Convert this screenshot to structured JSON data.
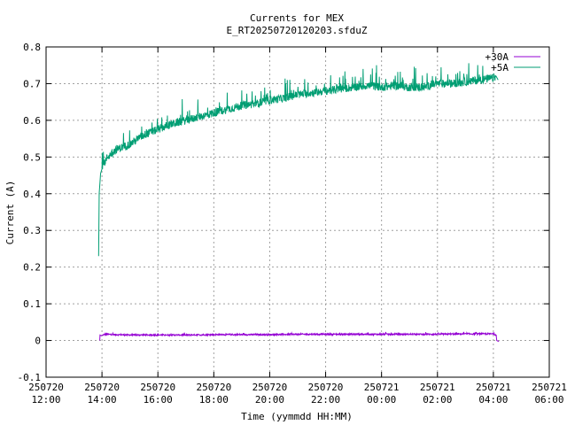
{
  "chart_data": {
    "type": "line",
    "title": "Currents for MEX",
    "subtitle": "E_RT20250720120203.sfduZ",
    "xlabel": "Time (yymmdd HH:MM)",
    "ylabel": "Current (A)",
    "xlim_hours": [
      12,
      30
    ],
    "ylim": [
      -0.1,
      0.8
    ],
    "grid": true,
    "legend_placement": "top-right",
    "x_ticks": [
      {
        "hour": 12,
        "date": "250720",
        "time": "12:00"
      },
      {
        "hour": 14,
        "date": "250720",
        "time": "14:00"
      },
      {
        "hour": 16,
        "date": "250720",
        "time": "16:00"
      },
      {
        "hour": 18,
        "date": "250720",
        "time": "18:00"
      },
      {
        "hour": 20,
        "date": "250720",
        "time": "20:00"
      },
      {
        "hour": 22,
        "date": "250720",
        "time": "22:00"
      },
      {
        "hour": 24,
        "date": "250721",
        "time": "00:00"
      },
      {
        "hour": 26,
        "date": "250721",
        "time": "02:00"
      },
      {
        "hour": 28,
        "date": "250721",
        "time": "04:00"
      },
      {
        "hour": 30,
        "date": "250721",
        "time": "06:00"
      }
    ],
    "y_ticks": [
      {
        "value": -0.1,
        "label": "-0.1"
      },
      {
        "value": 0,
        "label": "0"
      },
      {
        "value": 0.1,
        "label": "0.1"
      },
      {
        "value": 0.2,
        "label": "0.2"
      },
      {
        "value": 0.3,
        "label": "0.3"
      },
      {
        "value": 0.4,
        "label": "0.4"
      },
      {
        "value": 0.5,
        "label": "0.5"
      },
      {
        "value": 0.6,
        "label": "0.6"
      },
      {
        "value": 0.7,
        "label": "0.7"
      },
      {
        "value": 0.8,
        "label": "0.8"
      }
    ],
    "series": [
      {
        "name": "+30A",
        "color": "#9400d3",
        "x": [
          13.92,
          13.93,
          13.97,
          14.1,
          14.5,
          15.0,
          16.0,
          17.0,
          18.0,
          19.0,
          20.0,
          21.0,
          22.0,
          23.0,
          24.0,
          25.0,
          26.0,
          27.0,
          28.0,
          28.1,
          28.12,
          28.2
        ],
        "y": [
          0.0,
          0.015,
          0.013,
          0.017,
          0.016,
          0.015,
          0.015,
          0.015,
          0.016,
          0.016,
          0.016,
          0.017,
          0.017,
          0.017,
          0.017,
          0.017,
          0.017,
          0.018,
          0.018,
          0.015,
          0.0,
          -0.003
        ]
      },
      {
        "name": "+5A",
        "color": "#009e73",
        "x": [
          13.88,
          13.9,
          13.95,
          14.05,
          14.2,
          14.5,
          15.0,
          15.5,
          16.0,
          16.5,
          17.0,
          17.5,
          18.0,
          18.5,
          19.0,
          19.5,
          20.0,
          20.5,
          21.0,
          21.5,
          22.0,
          22.5,
          23.0,
          23.5,
          24.0,
          24.5,
          25.0,
          25.5,
          26.0,
          26.5,
          27.0,
          27.5,
          28.0,
          28.1,
          28.17
        ],
        "y": [
          0.23,
          0.4,
          0.455,
          0.48,
          0.5,
          0.52,
          0.535,
          0.56,
          0.575,
          0.59,
          0.6,
          0.61,
          0.62,
          0.63,
          0.64,
          0.645,
          0.655,
          0.66,
          0.67,
          0.675,
          0.68,
          0.685,
          0.69,
          0.695,
          0.69,
          0.695,
          0.69,
          0.69,
          0.7,
          0.7,
          0.705,
          0.71,
          0.715,
          0.72,
          0.71
        ]
      }
    ]
  }
}
